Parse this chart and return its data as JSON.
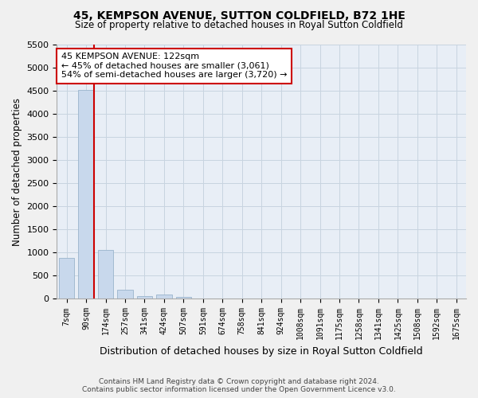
{
  "title": "45, KEMPSON AVENUE, SUTTON COLDFIELD, B72 1HE",
  "subtitle": "Size of property relative to detached houses in Royal Sutton Coldfield",
  "xlabel": "Distribution of detached houses by size in Royal Sutton Coldfield",
  "ylabel": "Number of detached properties",
  "categories": [
    "7sqm",
    "90sqm",
    "174sqm",
    "257sqm",
    "341sqm",
    "424sqm",
    "507sqm",
    "591sqm",
    "674sqm",
    "758sqm",
    "841sqm",
    "924sqm",
    "1008sqm",
    "1091sqm",
    "1175sqm",
    "1258sqm",
    "1341sqm",
    "1425sqm",
    "1508sqm",
    "1592sqm",
    "1675sqm"
  ],
  "values": [
    890,
    4530,
    1060,
    195,
    50,
    95,
    45,
    0,
    0,
    0,
    0,
    0,
    0,
    0,
    0,
    0,
    0,
    0,
    0,
    0,
    0
  ],
  "bar_color": "#c8d8ec",
  "bar_edge_color": "#9ab4cc",
  "annotation_line1": "45 KEMPSON AVENUE: 122sqm",
  "annotation_line2": "← 45% of detached houses are smaller (3,061)",
  "annotation_line3": "54% of semi-detached houses are larger (3,720) →",
  "ylim": [
    0,
    5500
  ],
  "yticks": [
    0,
    500,
    1000,
    1500,
    2000,
    2500,
    3000,
    3500,
    4000,
    4500,
    5000,
    5500
  ],
  "grid_color": "#c8d4e0",
  "background_color": "#e8eef6",
  "fig_background": "#f0f0f0",
  "red_line_color": "#cc0000",
  "annotation_box_color": "#ffffff",
  "annotation_border_color": "#cc0000",
  "footer_line1": "Contains HM Land Registry data © Crown copyright and database right 2024.",
  "footer_line2": "Contains public sector information licensed under the Open Government Licence v3.0.",
  "red_line_xindex": 1.5
}
